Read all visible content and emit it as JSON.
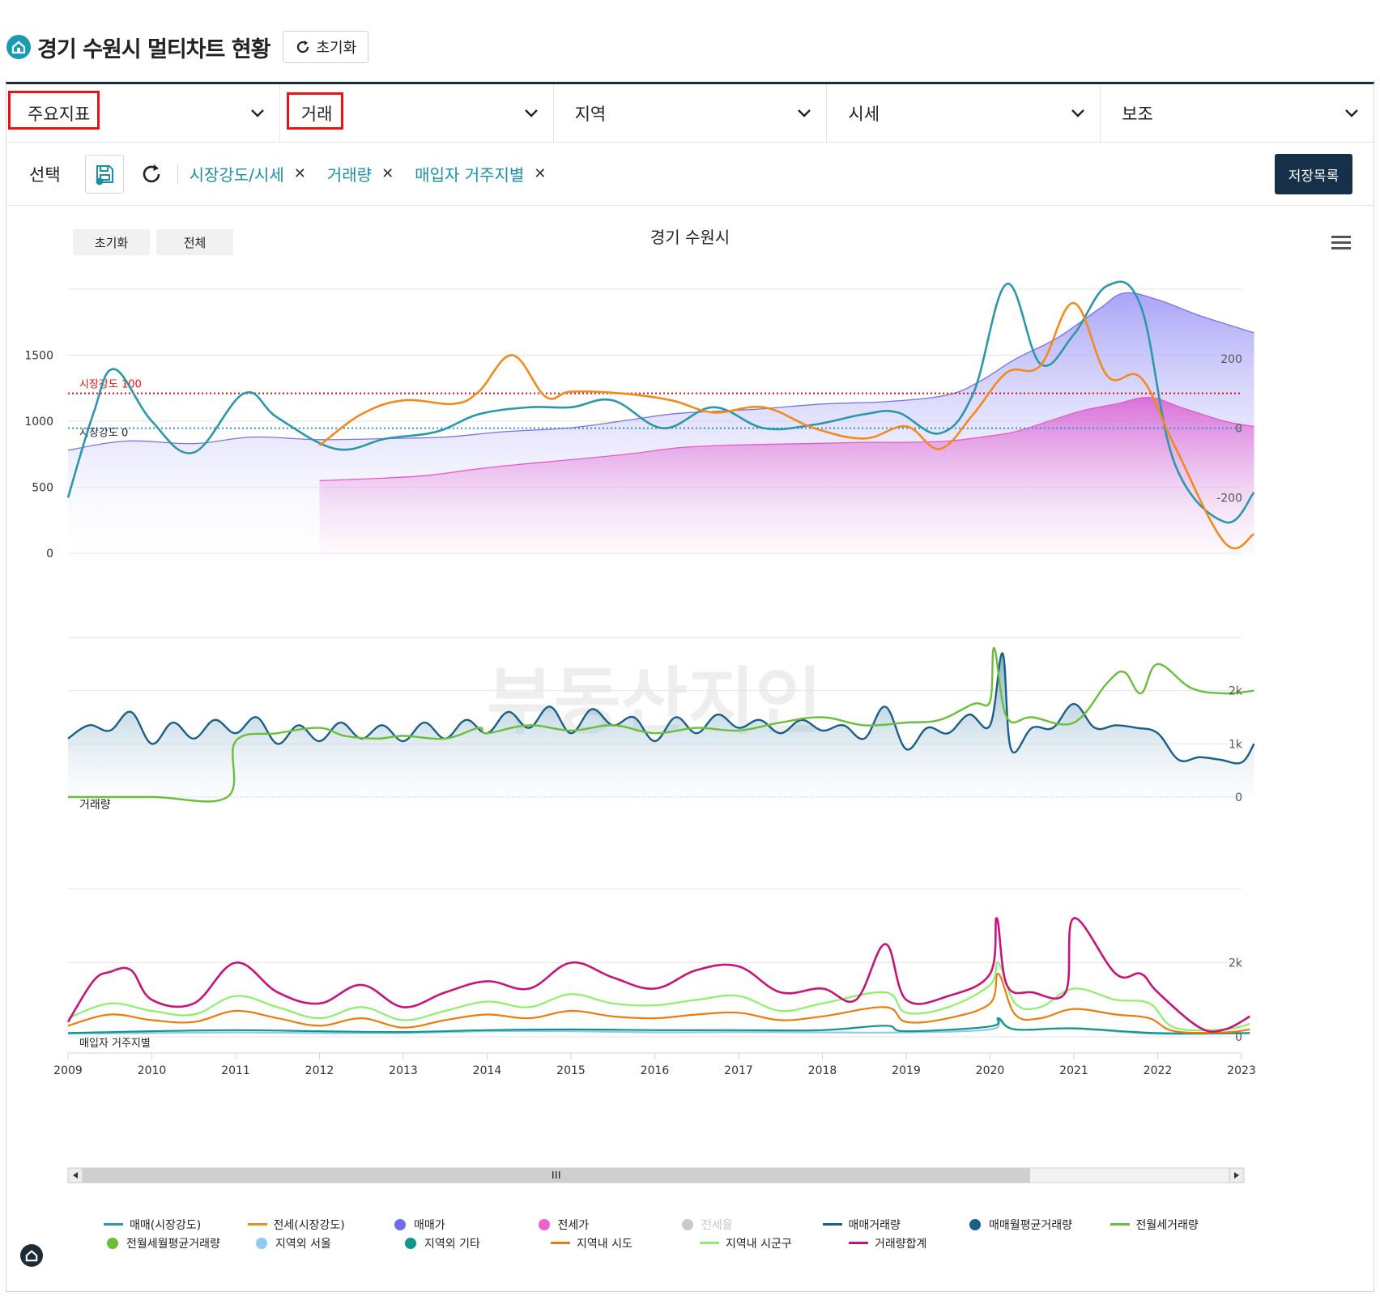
{
  "header": {
    "title": "경기 수원시 멀티차트 현황",
    "reset_label": "초기화"
  },
  "filters": [
    {
      "label": "주요지표",
      "highlighted": true
    },
    {
      "label": "거래",
      "highlighted": true
    },
    {
      "label": "지역",
      "highlighted": false
    },
    {
      "label": "시세",
      "highlighted": false
    },
    {
      "label": "보조",
      "highlighted": false
    }
  ],
  "selection": {
    "label": "선택",
    "chips": [
      "시장강도/시세",
      "거래량",
      "매입자 거주지별"
    ],
    "save_list_label": "저장목록"
  },
  "chart": {
    "reset_label": "초기화",
    "all_label": "전체",
    "title": "경기 수원시",
    "watermark": "부동산지인",
    "x_ticks": [
      "2009",
      "2010",
      "2011",
      "2012",
      "2013",
      "2014",
      "2015",
      "2016",
      "2017",
      "2018",
      "2019",
      "2020",
      "2021",
      "2022",
      "2023"
    ]
  },
  "chart_data": [
    {
      "type": "line",
      "title": "시장강도/시세",
      "x_start": 2009,
      "x_end": 2023,
      "y_left": {
        "ticks": [
          0,
          500,
          1000,
          1500
        ],
        "lim": [
          0,
          2000
        ]
      },
      "y_right": {
        "ticks": [
          -200,
          0,
          200
        ],
        "lim": [
          -360,
          400
        ]
      },
      "plot_lines": [
        {
          "label": "시장강도 100",
          "value": 100,
          "color": "#e01010"
        },
        {
          "label": "시장강도 0",
          "value": 0,
          "color": "#3a8fd0"
        }
      ],
      "series": [
        {
          "name": "매매(시장강도)",
          "axis": "right",
          "color": "#2b97aa",
          "x": [
            2009,
            2009.3,
            2009.55,
            2010.0,
            2010.5,
            2011.1,
            2011.5,
            2012.2,
            2012.8,
            2013.4,
            2013.9,
            2014.5,
            2015.0,
            2015.5,
            2016.1,
            2016.7,
            2017.3,
            2017.9,
            2018.5,
            2018.9,
            2019.4,
            2019.8,
            2020.2,
            2020.6,
            2021.0,
            2021.4,
            2021.8,
            2022.2,
            2022.8,
            2023.15
          ],
          "y": [
            -200,
            40,
            170,
            20,
            -70,
            100,
            30,
            -60,
            -30,
            -10,
            40,
            60,
            60,
            80,
            0,
            60,
            0,
            10,
            40,
            45,
            -15,
            100,
            415,
            185,
            270,
            410,
            350,
            -100,
            -270,
            -185
          ]
        },
        {
          "name": "전세(시장강도)",
          "axis": "right",
          "color": "#f28a1e",
          "x": [
            2012.0,
            2012.5,
            2013.0,
            2013.6,
            2013.9,
            2014.3,
            2014.7,
            2015.0,
            2015.6,
            2016.2,
            2016.7,
            2017.3,
            2017.9,
            2018.5,
            2019.0,
            2019.4,
            2019.8,
            2020.2,
            2020.6,
            2021.0,
            2021.4,
            2021.8,
            2022.2,
            2022.8,
            2023.15
          ],
          "y": [
            -50,
            40,
            80,
            70,
            105,
            210,
            90,
            105,
            100,
            80,
            45,
            60,
            0,
            -30,
            5,
            -60,
            40,
            160,
            180,
            360,
            150,
            145,
            -50,
            -330,
            -305
          ]
        },
        {
          "name": "매매가",
          "axis": "left",
          "color": "#7b72e9",
          "x": [
            2009,
            2009.7,
            2010.5,
            2011.2,
            2012.0,
            2012.9,
            2013.5,
            2014.2,
            2015.0,
            2015.7,
            2016.3,
            2017.2,
            2018.0,
            2018.8,
            2019.5,
            2019.9,
            2020.3,
            2020.8,
            2021.3,
            2021.6,
            2022.0,
            2022.5,
            2023.15
          ],
          "y": [
            780,
            850,
            830,
            880,
            860,
            870,
            880,
            920,
            950,
            1010,
            1060,
            1090,
            1130,
            1150,
            1200,
            1310,
            1470,
            1630,
            1850,
            1970,
            1920,
            1800,
            1670
          ]
        },
        {
          "name": "전세가",
          "axis": "left",
          "color": "#e05ccd",
          "x": [
            2012.0,
            2012.8,
            2013.3,
            2013.9,
            2014.5,
            2015.2,
            2015.8,
            2016.3,
            2017.0,
            2017.8,
            2018.5,
            2019.0,
            2019.5,
            2019.9,
            2020.3,
            2020.7,
            2021.1,
            2021.5,
            2021.9,
            2022.3,
            2022.8,
            2023.15
          ],
          "y": [
            550,
            570,
            590,
            640,
            680,
            720,
            760,
            800,
            820,
            830,
            840,
            840,
            850,
            880,
            920,
            1000,
            1080,
            1130,
            1180,
            1100,
            1000,
            960
          ]
        }
      ]
    },
    {
      "type": "line",
      "title": "거래량",
      "y_right": {
        "ticks": [
          "0",
          "1k",
          "2k"
        ],
        "lim": [
          0,
          3000
        ]
      },
      "series": [
        {
          "name": "매매거래량",
          "color": "#1a5e8a",
          "x": [
            2009.0,
            2009.25,
            2009.5,
            2009.75,
            2010.0,
            2010.25,
            2010.5,
            2010.75,
            2011.0,
            2011.25,
            2011.5,
            2011.75,
            2012.0,
            2012.25,
            2012.5,
            2012.75,
            2013.0,
            2013.25,
            2013.5,
            2013.75,
            2014.0,
            2014.25,
            2014.5,
            2014.75,
            2015.0,
            2015.25,
            2015.5,
            2015.75,
            2016.0,
            2016.25,
            2016.5,
            2016.75,
            2017.0,
            2017.25,
            2017.5,
            2017.75,
            2018.0,
            2018.25,
            2018.5,
            2018.75,
            2019.0,
            2019.25,
            2019.5,
            2019.75,
            2020.0,
            2020.15,
            2020.25,
            2020.5,
            2020.75,
            2021.0,
            2021.25,
            2021.5,
            2021.75,
            2022.0,
            2022.25,
            2022.5,
            2022.75,
            2023.0,
            2023.15
          ],
          "y": [
            1100,
            1350,
            1250,
            1600,
            1000,
            1400,
            1100,
            1450,
            1200,
            1500,
            1000,
            1350,
            1050,
            1400,
            1100,
            1350,
            1050,
            1400,
            1100,
            1450,
            1200,
            1600,
            1300,
            1700,
            1200,
            1650,
            1350,
            1500,
            1050,
            1500,
            1200,
            1550,
            1300,
            1450,
            1200,
            1450,
            1250,
            1350,
            1100,
            1700,
            900,
            1300,
            1200,
            1550,
            1350,
            2700,
            900,
            1300,
            1300,
            1750,
            1300,
            1350,
            1300,
            1200,
            700,
            750,
            700,
            650,
            1000
          ]
        },
        {
          "name": "전월세거래량",
          "color": "#6abf3a",
          "x": [
            2009.0,
            2010.0,
            2010.9,
            2011.0,
            2011.5,
            2012.0,
            2012.3,
            2012.7,
            2013.0,
            2013.5,
            2013.9,
            2014.0,
            2014.5,
            2015.0,
            2015.5,
            2016.0,
            2016.5,
            2017.0,
            2017.5,
            2018.0,
            2018.5,
            2019.0,
            2019.4,
            2019.8,
            2020.0,
            2020.05,
            2020.2,
            2020.5,
            2021.0,
            2021.4,
            2021.6,
            2021.8,
            2022.0,
            2022.4,
            2022.8,
            2023.15
          ],
          "y": [
            0,
            0,
            0,
            1050,
            1200,
            1300,
            1150,
            1100,
            1150,
            1100,
            1300,
            1200,
            1350,
            1250,
            1350,
            1200,
            1300,
            1250,
            1400,
            1500,
            1350,
            1400,
            1450,
            1750,
            1800,
            2800,
            1500,
            1500,
            1400,
            2150,
            2350,
            1950,
            2500,
            2050,
            1950,
            2000
          ]
        }
      ]
    },
    {
      "type": "line",
      "title": "매입자 거주지별",
      "y_right": {
        "ticks": [
          "0",
          "2k"
        ],
        "lim": [
          0,
          4000
        ]
      },
      "series": [
        {
          "name": "거래량합계",
          "color": "#c7137a",
          "x": [
            2009.0,
            2009.3,
            2009.5,
            2009.75,
            2010.0,
            2010.5,
            2011.0,
            2011.5,
            2012.0,
            2012.5,
            2013.0,
            2013.5,
            2014.0,
            2014.5,
            2015.0,
            2015.5,
            2016.0,
            2016.5,
            2017.0,
            2017.5,
            2018.0,
            2018.4,
            2018.75,
            2019.0,
            2019.5,
            2020.0,
            2020.08,
            2020.2,
            2020.5,
            2020.9,
            2021.0,
            2021.5,
            2021.8,
            2022.0,
            2022.5,
            2022.8,
            2023.1
          ],
          "y": [
            400,
            1500,
            1750,
            1800,
            1000,
            900,
            2000,
            1200,
            900,
            1400,
            800,
            1200,
            1500,
            1300,
            2000,
            1600,
            1300,
            1800,
            1900,
            1200,
            1300,
            1000,
            2500,
            1000,
            1100,
            1700,
            3200,
            1400,
            1200,
            1200,
            3200,
            1700,
            1700,
            1200,
            250,
            200,
            550
          ]
        },
        {
          "name": "지역내 시군구",
          "color": "#8cf06a",
          "x": [
            2009.0,
            2009.5,
            2010.0,
            2010.5,
            2011.0,
            2011.5,
            2012.0,
            2012.5,
            2013.0,
            2013.5,
            2014.0,
            2014.5,
            2015.0,
            2015.5,
            2016.0,
            2016.5,
            2017.0,
            2017.5,
            2018.0,
            2018.75,
            2019.0,
            2019.5,
            2020.0,
            2020.1,
            2020.3,
            2020.6,
            2021.0,
            2021.5,
            2021.9,
            2022.2,
            2022.8,
            2023.1
          ],
          "y": [
            500,
            900,
            700,
            600,
            1100,
            800,
            500,
            800,
            450,
            700,
            950,
            800,
            1150,
            900,
            850,
            1000,
            1100,
            700,
            900,
            1200,
            650,
            800,
            1400,
            2000,
            900,
            800,
            1300,
            1000,
            900,
            250,
            200,
            350
          ]
        },
        {
          "name": "지역내 시도",
          "color": "#f07a0a",
          "x": [
            2009.0,
            2009.5,
            2010.0,
            2010.5,
            2011.0,
            2011.5,
            2012.0,
            2012.5,
            2013.0,
            2013.5,
            2014.0,
            2014.5,
            2015.0,
            2015.5,
            2016.0,
            2016.5,
            2017.0,
            2017.5,
            2018.0,
            2018.75,
            2019.0,
            2019.5,
            2020.0,
            2020.1,
            2020.3,
            2020.6,
            2021.0,
            2021.5,
            2021.9,
            2022.2,
            2022.8,
            2023.1
          ],
          "y": [
            300,
            600,
            450,
            400,
            700,
            500,
            300,
            500,
            250,
            450,
            600,
            500,
            700,
            550,
            500,
            600,
            650,
            450,
            550,
            800,
            400,
            500,
            900,
            1700,
            600,
            500,
            750,
            600,
            500,
            150,
            120,
            200
          ]
        },
        {
          "name": "지역외 기타",
          "color": "#129688",
          "x": [
            2009.0,
            2010.0,
            2011.0,
            2012.0,
            2013.0,
            2014.0,
            2015.0,
            2016.0,
            2017.0,
            2018.0,
            2018.75,
            2019.0,
            2020.0,
            2020.1,
            2020.3,
            2021.0,
            2022.0,
            2023.1
          ],
          "y": [
            100,
            150,
            180,
            150,
            130,
            180,
            200,
            180,
            180,
            180,
            300,
            150,
            280,
            500,
            200,
            230,
            100,
            100
          ]
        },
        {
          "name": "지역외 서울",
          "color": "#8fcaf0",
          "x": [
            2009.0,
            2010.0,
            2011.0,
            2012.0,
            2013.0,
            2014.0,
            2015.0,
            2016.0,
            2017.0,
            2018.0,
            2019.0,
            2020.0,
            2020.1,
            2020.3,
            2021.0,
            2022.0,
            2023.1
          ],
          "y": [
            80,
            100,
            120,
            100,
            100,
            150,
            150,
            120,
            130,
            120,
            120,
            200,
            450,
            200,
            220,
            80,
            100
          ]
        }
      ]
    }
  ],
  "legend": [
    {
      "label": "매매(시장강도)",
      "marker": "line",
      "color": "#2b97aa",
      "muted": false
    },
    {
      "label": "전세(시장강도)",
      "marker": "line",
      "color": "#f28a1e",
      "muted": false
    },
    {
      "label": "매매가",
      "marker": "dot",
      "color": "#6f6ef0",
      "muted": false
    },
    {
      "label": "전세가",
      "marker": "dot",
      "color": "#ee5fd0",
      "muted": false
    },
    {
      "label": "전세율",
      "marker": "dot",
      "color": "#c9c9c9",
      "muted": true
    },
    {
      "label": "매매거래량",
      "marker": "line",
      "color": "#1a5e8a",
      "muted": false
    },
    {
      "label": "매매월평균거래량",
      "marker": "dot",
      "color": "#1a5e8a",
      "muted": false
    },
    {
      "label": "전월세거래량",
      "marker": "line",
      "color": "#6abf3a",
      "muted": false
    },
    {
      "label": "전월세월평균거래량",
      "marker": "dot",
      "color": "#6abf3a",
      "muted": false
    },
    {
      "label": "지역외 서울",
      "marker": "dot",
      "color": "#8fcaf0",
      "muted": false
    },
    {
      "label": "지역외 기타",
      "marker": "dot",
      "color": "#129688",
      "muted": false
    },
    {
      "label": "지역내 시도",
      "marker": "line",
      "color": "#f07a0a",
      "muted": false
    },
    {
      "label": "지역내 시군구",
      "marker": "line",
      "color": "#8cf06a",
      "muted": false
    },
    {
      "label": "거래량합계",
      "marker": "line",
      "color": "#c7137a",
      "muted": false
    }
  ]
}
